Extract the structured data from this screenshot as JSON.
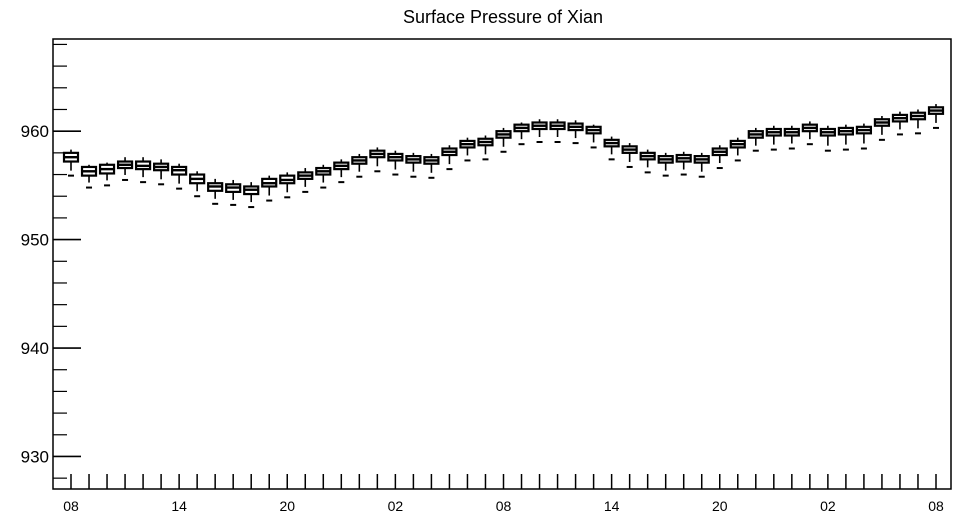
{
  "chart_data": {
    "type": "boxplot",
    "title": "Surface Pressure of Xian",
    "xlabel": "",
    "ylabel": "",
    "ylim": [
      927,
      968.5
    ],
    "yticks": [
      930,
      940,
      950,
      960
    ],
    "ytick_labels": [
      "930",
      "940",
      "950",
      "960"
    ],
    "xtick_labels": [
      {
        "label": "08",
        "index": 0
      },
      {
        "label": "14",
        "index": 6
      },
      {
        "label": "20",
        "index": 12
      },
      {
        "label": "02",
        "index": 18
      },
      {
        "label": "08",
        "index": 24
      },
      {
        "label": "14",
        "index": 30
      },
      {
        "label": "20",
        "index": 36
      },
      {
        "label": "02",
        "index": 42
      },
      {
        "label": "08",
        "index": 48
      }
    ],
    "grid": false,
    "series": [
      {
        "median": [
          957.6,
          956.3,
          956.5,
          956.9,
          956.8,
          956.7,
          956.4,
          955.6,
          954.9,
          954.8,
          954.6,
          955.2,
          955.5,
          955.9,
          956.3,
          956.8,
          957.3,
          957.9,
          957.6,
          957.4,
          957.3,
          958.1,
          958.8,
          959.0,
          959.7,
          960.3,
          960.5,
          960.5,
          960.4,
          960.1,
          958.9,
          958.3,
          957.7,
          957.4,
          957.5,
          957.4,
          958.1,
          958.8,
          959.7,
          959.9,
          959.9,
          960.3,
          959.9,
          960.0,
          960.1,
          960.8,
          961.2,
          961.4,
          961.9
        ],
        "q1": [
          957.2,
          955.9,
          956.1,
          956.6,
          956.5,
          956.4,
          956.0,
          955.2,
          954.5,
          954.4,
          954.2,
          954.9,
          955.2,
          955.6,
          956.0,
          956.5,
          957.0,
          957.6,
          957.3,
          957.1,
          957.0,
          957.8,
          958.5,
          958.7,
          959.4,
          960.0,
          960.2,
          960.2,
          960.1,
          959.8,
          958.6,
          958.0,
          957.4,
          957.1,
          957.2,
          957.1,
          957.8,
          958.5,
          959.4,
          959.6,
          959.6,
          960.0,
          959.6,
          959.7,
          959.8,
          960.5,
          960.9,
          961.1,
          961.6
        ],
        "q3": [
          958.0,
          956.7,
          956.9,
          957.2,
          957.2,
          957.0,
          956.7,
          956.0,
          955.2,
          955.1,
          954.9,
          955.6,
          955.9,
          956.2,
          956.6,
          957.1,
          957.6,
          958.2,
          957.9,
          957.7,
          957.6,
          958.4,
          959.1,
          959.3,
          960.0,
          960.6,
          960.8,
          960.8,
          960.7,
          960.4,
          959.2,
          958.6,
          958.0,
          957.7,
          957.8,
          957.7,
          958.4,
          959.1,
          960.0,
          960.2,
          960.2,
          960.6,
          960.2,
          960.3,
          960.4,
          961.1,
          961.5,
          961.7,
          962.2
        ],
        "upper": [
          958.3,
          956.9,
          957.1,
          957.6,
          957.6,
          957.4,
          957.0,
          956.3,
          955.6,
          955.5,
          955.3,
          955.9,
          956.2,
          956.6,
          956.9,
          957.4,
          957.9,
          958.5,
          958.2,
          958.0,
          957.9,
          958.7,
          959.4,
          959.6,
          960.3,
          960.8,
          961.1,
          961.1,
          961.0,
          960.6,
          959.5,
          958.9,
          958.3,
          958.0,
          958.1,
          958.0,
          958.7,
          959.4,
          960.3,
          960.5,
          960.5,
          960.9,
          960.5,
          960.6,
          960.7,
          961.4,
          961.8,
          962.0,
          962.5
        ],
        "lower": [
          955.9,
          954.8,
          955.0,
          955.5,
          955.3,
          955.1,
          954.7,
          954.0,
          953.3,
          953.2,
          953.0,
          953.6,
          953.9,
          954.4,
          954.8,
          955.3,
          955.8,
          956.3,
          956.0,
          955.8,
          955.7,
          956.5,
          957.3,
          957.4,
          958.1,
          958.8,
          959.0,
          959.0,
          958.9,
          958.5,
          957.4,
          956.7,
          956.2,
          955.9,
          956.0,
          955.8,
          956.6,
          957.3,
          958.2,
          958.3,
          958.4,
          958.8,
          958.2,
          958.3,
          958.4,
          959.2,
          959.7,
          959.8,
          960.3
        ]
      }
    ]
  }
}
